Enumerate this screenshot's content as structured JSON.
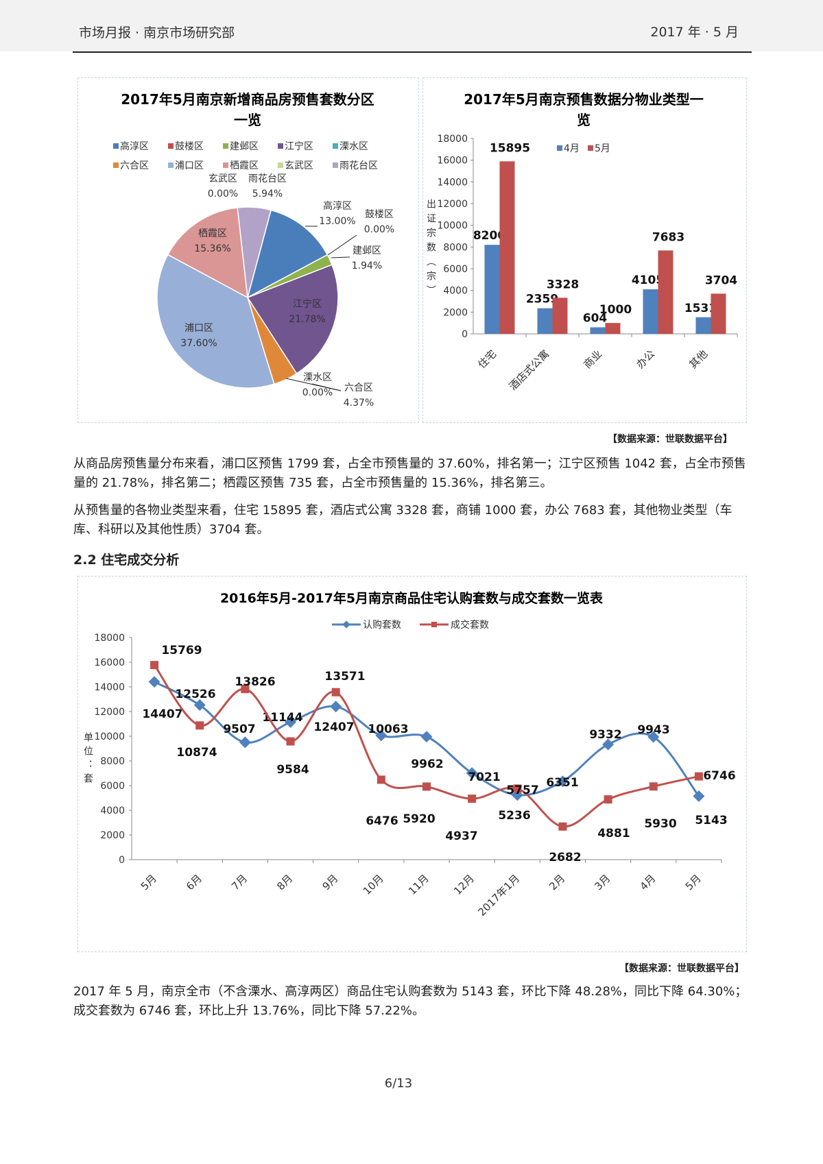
{
  "header": {
    "left": "市场月报 · 南京市场研究部",
    "right": "2017 年 · 5 月"
  },
  "pie": {
    "title_lines": [
      "2017年5月南京新增商品房预售套数分区",
      "一览"
    ],
    "chart_data": {
      "type": "pie",
      "title": "2017年5月南京新增商品房预售套数分区一览",
      "legend_position": "top",
      "slices": [
        {
          "name": "高淳区",
          "value": 13.0,
          "label": "13.00%",
          "color": "#4a7ebb"
        },
        {
          "name": "鼓楼区",
          "value": 0.0,
          "label": "0.00%",
          "color": "#c0504d"
        },
        {
          "name": "建邺区",
          "value": 1.94,
          "label": "1.94%",
          "color": "#8fb24f"
        },
        {
          "name": "江宁区",
          "value": 21.78,
          "label": "21.78%",
          "color": "#70558f"
        },
        {
          "name": "溧水区",
          "value": 0.0,
          "label": "0.00%",
          "color": "#4bacc6"
        },
        {
          "name": "六合区",
          "value": 4.37,
          "label": "4.37%",
          "color": "#e0883a"
        },
        {
          "name": "浦口区",
          "value": 37.6,
          "label": "37.60%",
          "color": "#98afd7"
        },
        {
          "name": "栖霞区",
          "value": 15.36,
          "label": "15.36%",
          "color": "#d99694"
        },
        {
          "name": "玄武区",
          "value": 0.0,
          "label": "0.00%",
          "color": "#c3d69b"
        },
        {
          "name": "雨花台区",
          "value": 5.94,
          "label": "5.94%",
          "color": "#b3a2c7"
        }
      ]
    }
  },
  "bar": {
    "title_lines": [
      "2017年5月南京预售数据分物业类型一",
      "览"
    ],
    "chart_data": {
      "type": "bar",
      "title": "2017年5月南京预售数据分物业类型一览",
      "ylabel": "出证宗数（宗）",
      "ylim": [
        0,
        18000
      ],
      "yticks": [
        "0",
        "2000",
        "4000",
        "6000",
        "8000",
        "10000",
        "12000",
        "14000",
        "16000",
        "18000"
      ],
      "categories": [
        "住宅",
        "酒店式公寓",
        "商业",
        "办公",
        "其他"
      ],
      "legend_position": "top",
      "series": [
        {
          "name": "4月",
          "color": "#4f81bd",
          "values": [
            8200,
            2359,
            604,
            4105,
            1531
          ]
        },
        {
          "name": "5月",
          "color": "#c0504d",
          "values": [
            15895,
            3328,
            1000,
            7683,
            3704
          ]
        }
      ]
    }
  },
  "source1": "【数据来源：世联数据平台】",
  "para1": "从商品房预售量分布来看，浦口区预售 1799 套，占全市预售量的 37.60%，排名第一；江宁区预售 1042 套，占全市预售量的 21.78%，排名第二；栖霞区预售 735 套，占全市预售量的 15.36%，排名第三。",
  "para2": "从预售量的各物业类型来看，住宅 15895 套，酒店式公寓 3328 套，商铺 1000 套，办公 7683 套，其他物业类型（车库、科研以及其他性质）3704 套。",
  "section_heading": "2.2 住宅成交分析",
  "line": {
    "chart_data": {
      "type": "line",
      "title": "2016年5月-2017年5月南京商品住宅认购套数与成交套数一览表",
      "ylabel": "单位：套",
      "ylim": [
        0,
        18000
      ],
      "yticks": [
        "0",
        "2000",
        "4000",
        "6000",
        "8000",
        "10000",
        "12000",
        "14000",
        "16000",
        "18000"
      ],
      "categories": [
        "5月",
        "6月",
        "7月",
        "8月",
        "9月",
        "10月",
        "11月",
        "12月",
        "2017年1月",
        "2月",
        "3月",
        "4月",
        "5月"
      ],
      "legend_position": "top",
      "series": [
        {
          "name": "认购套数",
          "color": "#4f81bd",
          "marker": "diamond",
          "values": [
            14407,
            12526,
            9507,
            11144,
            12407,
            10063,
            9962,
            7021,
            5236,
            6351,
            9332,
            9943,
            5143
          ]
        },
        {
          "name": "成交套数",
          "color": "#c0504d",
          "marker": "square",
          "values": [
            15769,
            10874,
            13826,
            9584,
            13571,
            6476,
            5920,
            4937,
            5757,
            2682,
            4881,
            5930,
            6746
          ]
        }
      ]
    }
  },
  "source2": "【数据来源：世联数据平台】",
  "para3": "2017 年 5 月，南京全市（不含溧水、高淳两区）商品住宅认购套数为 5143 套，环比下降 48.28%，同比下降 64.30%；成交套数为 6746 套，环比上升 13.76%，同比下降 57.22%。",
  "page_number": "6/13"
}
